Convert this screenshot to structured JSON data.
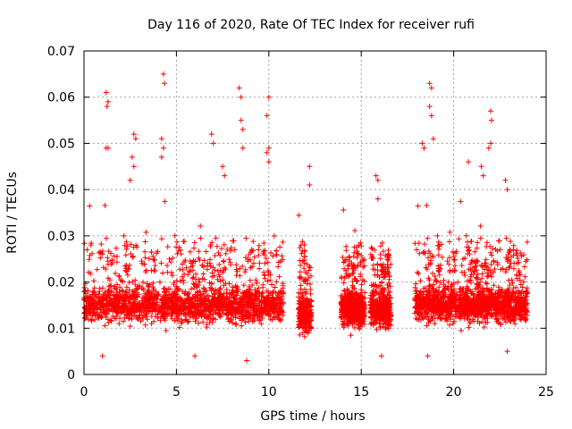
{
  "chart_data": {
    "type": "scatter",
    "title": "Day 116 of 2020, Rate Of TEC Index for receiver rufi",
    "xlabel": "GPS time / hours",
    "ylabel": "ROTI / TECUs",
    "xlim": [
      0,
      25
    ],
    "ylim": [
      0,
      0.07
    ],
    "x_ticks": [
      0,
      5,
      10,
      15,
      20,
      25
    ],
    "x_tick_labels": [
      "0",
      "5",
      "10",
      "15",
      "20",
      "25"
    ],
    "y_ticks": [
      0,
      0.01,
      0.02,
      0.03,
      0.04,
      0.05,
      0.06,
      0.07
    ],
    "y_tick_labels": [
      "0",
      "0.01",
      "0.02",
      "0.03",
      "0.04",
      "0.05",
      "0.06",
      "0.07"
    ],
    "grid": true,
    "marker": "+",
    "color": "#ff0000",
    "data_segments": [
      {
        "start": 0.0,
        "end": 10.8,
        "typical": 0.015
      },
      {
        "start": 11.6,
        "end": 12.3,
        "typical": 0.013
      },
      {
        "start": 13.9,
        "end": 15.2,
        "typical": 0.014
      },
      {
        "start": 15.5,
        "end": 16.6,
        "typical": 0.014
      },
      {
        "start": 17.9,
        "end": 24.0,
        "typical": 0.015
      }
    ],
    "series": [
      {
        "name": "ROTI",
        "points": [
          [
            1.2,
            0.061
          ],
          [
            1.3,
            0.059
          ],
          [
            1.25,
            0.058
          ],
          [
            1.2,
            0.049
          ],
          [
            1.3,
            0.049
          ],
          [
            2.7,
            0.052
          ],
          [
            2.8,
            0.051
          ],
          [
            2.6,
            0.047
          ],
          [
            2.7,
            0.045
          ],
          [
            2.5,
            0.042
          ],
          [
            4.3,
            0.065
          ],
          [
            4.35,
            0.063
          ],
          [
            4.2,
            0.051
          ],
          [
            4.3,
            0.049
          ],
          [
            4.2,
            0.047
          ],
          [
            6.9,
            0.052
          ],
          [
            7.0,
            0.05
          ],
          [
            7.5,
            0.045
          ],
          [
            7.6,
            0.043
          ],
          [
            8.4,
            0.062
          ],
          [
            8.5,
            0.06
          ],
          [
            8.5,
            0.055
          ],
          [
            8.6,
            0.053
          ],
          [
            8.6,
            0.049
          ],
          [
            9.9,
            0.056
          ],
          [
            10.0,
            0.06
          ],
          [
            10.0,
            0.049
          ],
          [
            9.9,
            0.048
          ],
          [
            10.0,
            0.046
          ],
          [
            12.2,
            0.045
          ],
          [
            12.2,
            0.041
          ],
          [
            15.8,
            0.043
          ],
          [
            15.9,
            0.042
          ],
          [
            15.9,
            0.038
          ],
          [
            18.3,
            0.05
          ],
          [
            18.4,
            0.049
          ],
          [
            18.7,
            0.063
          ],
          [
            18.8,
            0.062
          ],
          [
            18.7,
            0.058
          ],
          [
            18.8,
            0.056
          ],
          [
            18.9,
            0.051
          ],
          [
            20.8,
            0.046
          ],
          [
            21.5,
            0.045
          ],
          [
            21.6,
            0.043
          ],
          [
            22.0,
            0.057
          ],
          [
            22.05,
            0.055
          ],
          [
            22.0,
            0.05
          ],
          [
            21.9,
            0.049
          ],
          [
            22.8,
            0.042
          ],
          [
            22.9,
            0.04
          ],
          [
            8.8,
            0.003
          ],
          [
            1.0,
            0.004
          ],
          [
            6.0,
            0.004
          ],
          [
            16.1,
            0.004
          ],
          [
            18.6,
            0.004
          ],
          [
            22.9,
            0.005
          ]
        ]
      }
    ]
  }
}
